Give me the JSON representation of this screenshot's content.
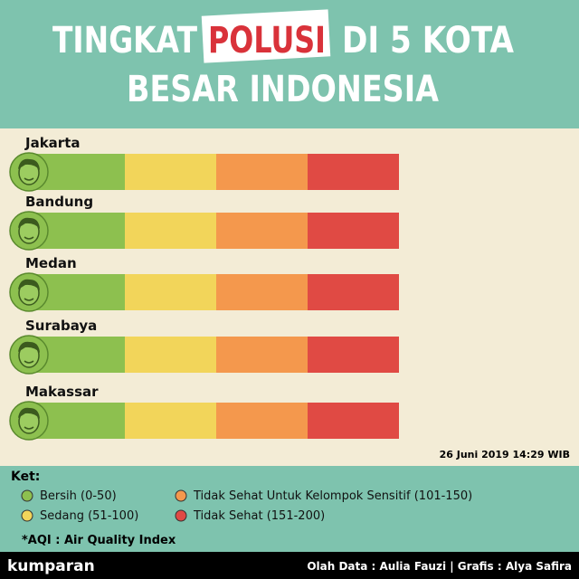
{
  "header": {
    "title_parts": [
      "TINGKAT",
      "POLUSI",
      "DI 5 KOTA"
    ],
    "title_line2": "BESAR INDONESIA"
  },
  "cities": [
    "Jakarta",
    "Bandung",
    "Medan",
    "Surabaya",
    "Makassar"
  ],
  "timestamp": "26 Juni 2019 14:29 WIB",
  "legend": {
    "title": "Ket:",
    "items": [
      {
        "label": "Bersih (0-50)",
        "color": "#8dc04f"
      },
      {
        "label": "Sedang (51-100)",
        "color": "#f2d55a"
      },
      {
        "label": "Tidak Sehat Untuk Kelompok Sensitif (101-150)",
        "color": "#f4984d"
      },
      {
        "label": "Tidak Sehat (151-200)",
        "color": "#e04a44"
      }
    ],
    "note": "*AQI : Air Quality Index"
  },
  "footer": {
    "brand": "kumparan",
    "credits": "Olah Data : Aulia Fauzi | Grafis : Alya Safira"
  }
}
